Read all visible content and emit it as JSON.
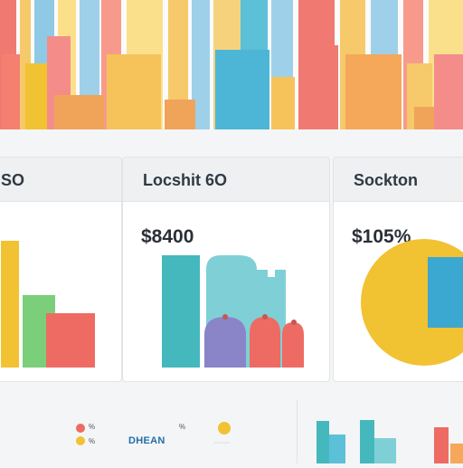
{
  "cards": [
    {
      "title": "SO",
      "value": ""
    },
    {
      "title": "Locshit 6O",
      "value": "$8400"
    },
    {
      "title": "Sockton",
      "value": "$105%"
    }
  ],
  "legend": {
    "marks": [
      "%",
      "%",
      "%"
    ],
    "label": "DHEAN"
  },
  "colors": {
    "yellow": "#f1c232",
    "green": "#7ccf7a",
    "coral": "#ee6b63",
    "teal": "#45b8bd",
    "light_teal": "#7fd0d6",
    "purple": "#8a84c9",
    "blue": "#3aa8d1",
    "orange": "#f5a85a",
    "pink": "#f48c8a"
  }
}
